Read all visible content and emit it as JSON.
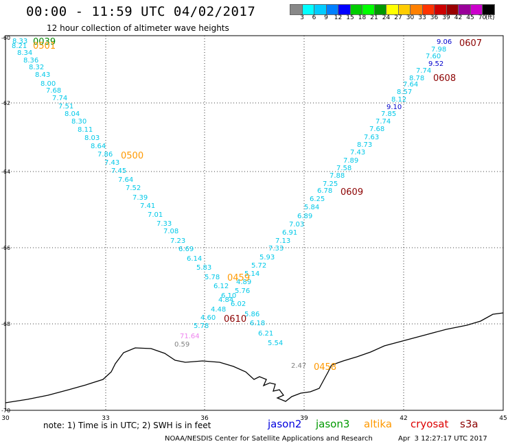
{
  "header": {
    "title": "00:00 - 11:59 UTC 04/02/2017",
    "subtitle": "12 hour collection of altimeter wave heights"
  },
  "colorbar": {
    "unit": "(ft)",
    "labels": [
      "3",
      "6",
      "9",
      "12",
      "15",
      "18",
      "21",
      "24",
      "27",
      "30",
      "33",
      "36",
      "39",
      "42",
      "45",
      "70"
    ],
    "colors": [
      "#888888",
      "#00ffff",
      "#00ccff",
      "#0080ff",
      "#0000ff",
      "#00cc00",
      "#00ff00",
      "#009900",
      "#ffff00",
      "#ffcc00",
      "#ff8000",
      "#ff3300",
      "#cc0000",
      "#990000",
      "#990099",
      "#cc00cc",
      "#000000"
    ]
  },
  "map": {
    "x_ticks": [
      "30",
      "33",
      "36",
      "39",
      "42",
      "45"
    ],
    "y_ticks": [
      "-60",
      "-62",
      "-64",
      "-66",
      "-68",
      "-70"
    ],
    "coast_color": "#000000",
    "grid_style": "dotted"
  },
  "track_labels": {
    "colors": {
      "cyan": "#00c8e8",
      "blue": "#0000cc",
      "green": "#008800",
      "orange": "#ff9900",
      "darkred": "#8b0000",
      "pink": "#ee82ee",
      "gray": "#808080"
    },
    "times": [
      {
        "text": "0039",
        "color": "green"
      },
      {
        "text": "0501",
        "color": "orange"
      },
      {
        "text": "0500",
        "color": "orange"
      },
      {
        "text": "0459",
        "color": "orange"
      },
      {
        "text": "0458",
        "color": "orange"
      },
      {
        "text": "0610",
        "color": "darkred"
      },
      {
        "text": "0609",
        "color": "darkred"
      },
      {
        "text": "0608",
        "color": "darkred"
      },
      {
        "text": "0607",
        "color": "darkred"
      }
    ],
    "values": [
      {
        "text": "8.33",
        "color": "cyan"
      },
      {
        "text": "8.21",
        "color": "cyan"
      },
      {
        "text": "8.34",
        "color": "cyan"
      },
      {
        "text": "8.36",
        "color": "cyan"
      },
      {
        "text": "8.32",
        "color": "cyan"
      },
      {
        "text": "8.43",
        "color": "cyan"
      },
      {
        "text": "8.00",
        "color": "cyan"
      },
      {
        "text": "7.68",
        "color": "cyan"
      },
      {
        "text": "7.74",
        "color": "cyan"
      },
      {
        "text": "7.51",
        "color": "cyan"
      },
      {
        "text": "8.04",
        "color": "cyan"
      },
      {
        "text": "8.30",
        "color": "cyan"
      },
      {
        "text": "8.11",
        "color": "cyan"
      },
      {
        "text": "8.03",
        "color": "cyan"
      },
      {
        "text": "8.64",
        "color": "cyan"
      },
      {
        "text": "7.86",
        "color": "cyan"
      },
      {
        "text": "7.43",
        "color": "cyan"
      },
      {
        "text": "7.45",
        "color": "cyan"
      },
      {
        "text": "7.64",
        "color": "cyan"
      },
      {
        "text": "7.52",
        "color": "cyan"
      },
      {
        "text": "7.39",
        "color": "cyan"
      },
      {
        "text": "7.41",
        "color": "cyan"
      },
      {
        "text": "7.01",
        "color": "cyan"
      },
      {
        "text": "7.33",
        "color": "cyan"
      },
      {
        "text": "7.08",
        "color": "cyan"
      },
      {
        "text": "7.23",
        "color": "cyan"
      },
      {
        "text": "6.69",
        "color": "cyan"
      },
      {
        "text": "6.14",
        "color": "cyan"
      },
      {
        "text": "5.83",
        "color": "cyan"
      },
      {
        "text": "5.78",
        "color": "cyan"
      },
      {
        "text": "6.12",
        "color": "cyan"
      },
      {
        "text": "6.10",
        "color": "cyan"
      },
      {
        "text": "4.84",
        "color": "cyan"
      },
      {
        "text": "4.48",
        "color": "cyan"
      },
      {
        "text": "4.60",
        "color": "cyan"
      },
      {
        "text": "5.78",
        "color": "cyan"
      },
      {
        "text": "71.64",
        "color": "pink"
      },
      {
        "text": "0.59",
        "color": "gray"
      },
      {
        "text": "9.06",
        "color": "blue"
      },
      {
        "text": "7.98",
        "color": "cyan"
      },
      {
        "text": "7.60",
        "color": "cyan"
      },
      {
        "text": "9.52",
        "color": "blue"
      },
      {
        "text": "7.74",
        "color": "cyan"
      },
      {
        "text": "8.78",
        "color": "cyan"
      },
      {
        "text": "7.64",
        "color": "cyan"
      },
      {
        "text": "8.57",
        "color": "cyan"
      },
      {
        "text": "8.12",
        "color": "cyan"
      },
      {
        "text": "9.10",
        "color": "blue"
      },
      {
        "text": "7.85",
        "color": "cyan"
      },
      {
        "text": "7.74",
        "color": "cyan"
      },
      {
        "text": "7.68",
        "color": "cyan"
      },
      {
        "text": "7.63",
        "color": "cyan"
      },
      {
        "text": "8.73",
        "color": "cyan"
      },
      {
        "text": "7.43",
        "color": "cyan"
      },
      {
        "text": "7.89",
        "color": "cyan"
      },
      {
        "text": "7.58",
        "color": "cyan"
      },
      {
        "text": "7.88",
        "color": "cyan"
      },
      {
        "text": "7.25",
        "color": "cyan"
      },
      {
        "text": "6.78",
        "color": "cyan"
      },
      {
        "text": "6.25",
        "color": "cyan"
      },
      {
        "text": "5.84",
        "color": "cyan"
      },
      {
        "text": "6.89",
        "color": "cyan"
      },
      {
        "text": "7.03",
        "color": "cyan"
      },
      {
        "text": "6.91",
        "color": "cyan"
      },
      {
        "text": "7.13",
        "color": "cyan"
      },
      {
        "text": "7.33",
        "color": "cyan"
      },
      {
        "text": "5.93",
        "color": "cyan"
      },
      {
        "text": "5.72",
        "color": "cyan"
      },
      {
        "text": "5.14",
        "color": "cyan"
      },
      {
        "text": "4.89",
        "color": "cyan"
      },
      {
        "text": "5.76",
        "color": "cyan"
      },
      {
        "text": "6.02",
        "color": "cyan"
      },
      {
        "text": "5.86",
        "color": "cyan"
      },
      {
        "text": "6.18",
        "color": "cyan"
      },
      {
        "text": "6.21",
        "color": "cyan"
      },
      {
        "text": "5.54",
        "color": "cyan"
      },
      {
        "text": "2.47",
        "color": "gray"
      }
    ]
  },
  "footer": {
    "note": "note: 1) Time is in UTC; 2) SWH is in feet",
    "satellites": [
      {
        "name": "jason2",
        "color": "#0000dd"
      },
      {
        "name": "jason3",
        "color": "#009900"
      },
      {
        "name": "altika",
        "color": "#ff9900"
      },
      {
        "name": "cryosat",
        "color": "#dd0000"
      },
      {
        "name": "s3a",
        "color": "#8b0000"
      }
    ],
    "credit": "NOAA/NESDIS Center for Satellite Applications and Research",
    "timestamp": "Apr  3 12:27:17 UTC 2017"
  }
}
